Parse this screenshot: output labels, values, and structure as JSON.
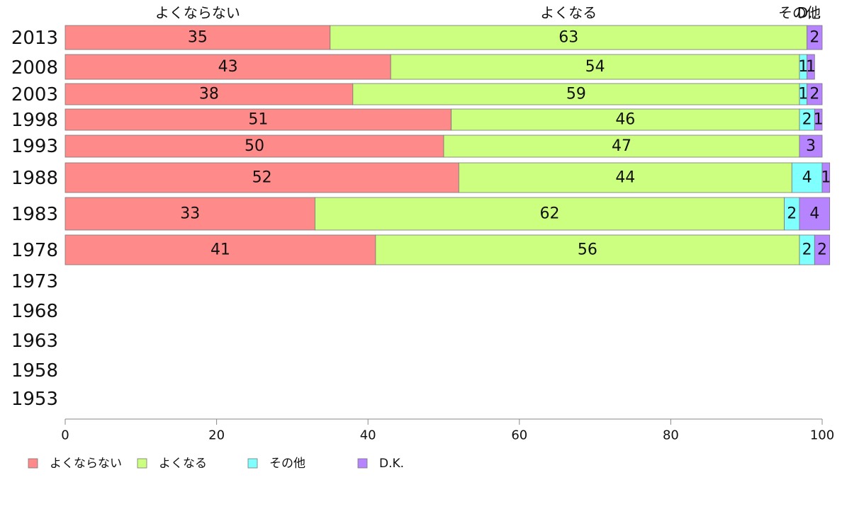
{
  "chart_data": {
    "type": "bar",
    "orientation": "horizontal",
    "stacked": true,
    "categories": [
      "2013",
      "2008",
      "2003",
      "1998",
      "1993",
      "1988",
      "1983",
      "1978",
      "1973",
      "1968",
      "1963",
      "1958",
      "1953"
    ],
    "series": [
      {
        "name": "よくならない",
        "color": "#ff8a8a",
        "values": [
          35,
          43,
          38,
          51,
          50,
          52,
          33,
          41,
          null,
          null,
          null,
          null,
          null
        ]
      },
      {
        "name": "よくなる",
        "color": "#ccff80",
        "values": [
          63,
          54,
          59,
          46,
          47,
          44,
          62,
          56,
          null,
          null,
          null,
          null,
          null
        ]
      },
      {
        "name": "その他",
        "color": "#80ffff",
        "values": [
          0,
          1,
          1,
          2,
          0,
          4,
          2,
          2,
          null,
          null,
          null,
          null,
          null
        ]
      },
      {
        "name": "D.K.",
        "color": "#b784ff",
        "values": [
          2,
          1,
          2,
          1,
          3,
          1,
          4,
          2,
          null,
          null,
          null,
          null,
          null
        ]
      }
    ],
    "top_labels": [
      "よくならない",
      "よくなる",
      "その他",
      "D..."
    ],
    "x_ticks": [
      0,
      20,
      40,
      60,
      80,
      100
    ],
    "xlim": [
      0,
      100
    ],
    "grid": false,
    "legend_position": "bottom"
  }
}
